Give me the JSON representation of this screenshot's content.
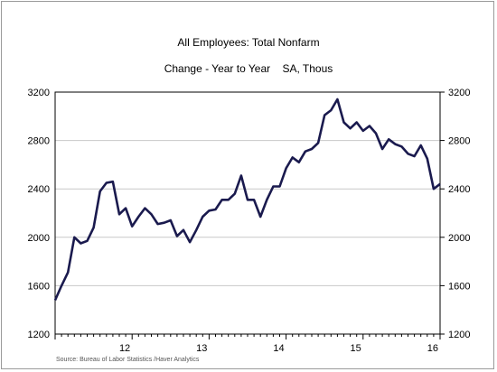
{
  "chart_data": {
    "type": "line",
    "title": "All Employees: Total Nonfarm",
    "subtitle": "Change - Year to Year    SA, Thous",
    "source": "Source:  Bureau of Labor Statistics /Haver Analytics",
    "xlabel": "",
    "ylabel": "",
    "ylim": [
      1200,
      3200
    ],
    "yticks": [
      1200,
      1600,
      2000,
      2400,
      2800,
      3200
    ],
    "xlim": [
      2011.0,
      2016.0
    ],
    "xticks": [
      {
        "label": "12",
        "x": 2012.0
      },
      {
        "label": "13",
        "x": 2013.0
      },
      {
        "label": "14",
        "x": 2014.0
      },
      {
        "label": "15",
        "x": 2015.0
      },
      {
        "label": "16",
        "x": 2016.0
      }
    ],
    "grid": true,
    "line_color": "#1a1a4e",
    "series": [
      {
        "x": [
          2011.0,
          2011.083,
          2011.167,
          2011.25,
          2011.333,
          2011.417,
          2011.5,
          2011.583,
          2011.667,
          2011.75,
          2011.833,
          2011.917,
          2012.0,
          2012.083,
          2012.167,
          2012.25,
          2012.333,
          2012.417,
          2012.5,
          2012.583,
          2012.667,
          2012.75,
          2012.833,
          2012.917,
          2013.0,
          2013.083,
          2013.167,
          2013.25,
          2013.333,
          2013.417,
          2013.5,
          2013.583,
          2013.667,
          2013.75,
          2013.833,
          2013.917,
          2014.0,
          2014.083,
          2014.167,
          2014.25,
          2014.333,
          2014.417,
          2014.5,
          2014.583,
          2014.667,
          2014.75,
          2014.833,
          2014.917,
          2015.0,
          2015.083,
          2015.167,
          2015.25,
          2015.333,
          2015.417,
          2015.5,
          2015.583,
          2015.667,
          2015.75,
          2015.833,
          2015.917,
          2016.0
        ],
        "values": [
          1480,
          1600,
          1710,
          2000,
          1950,
          1970,
          2080,
          2380,
          2450,
          2460,
          2190,
          2240,
          2090,
          2170,
          2240,
          2190,
          2110,
          2120,
          2140,
          2010,
          2060,
          1960,
          2060,
          2170,
          2220,
          2230,
          2310,
          2310,
          2360,
          2510,
          2310,
          2310,
          2170,
          2310,
          2420,
          2420,
          2570,
          2660,
          2620,
          2710,
          2730,
          2780,
          3010,
          3050,
          3140,
          2950,
          2900,
          2950,
          2880,
          2920,
          2860,
          2730,
          2810,
          2770,
          2750,
          2690,
          2670,
          2760,
          2650,
          2400,
          2440
        ]
      }
    ]
  }
}
